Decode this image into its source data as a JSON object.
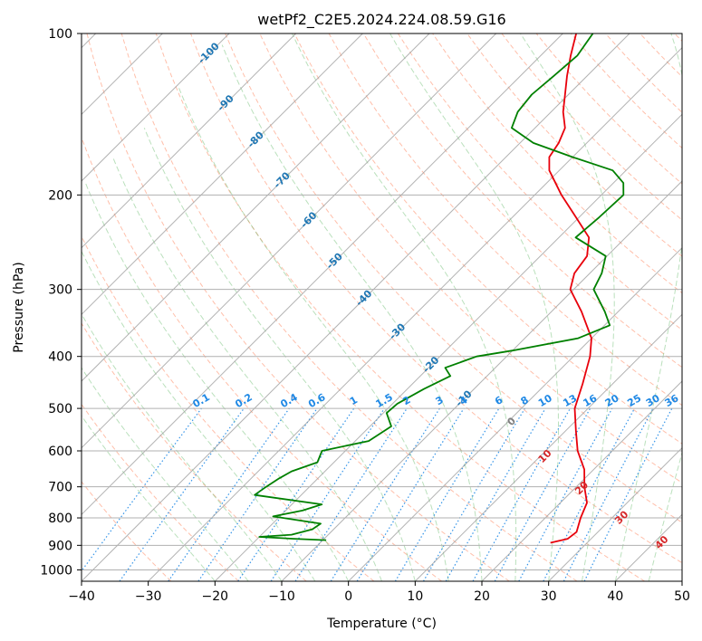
{
  "chart_data": {
    "type": "line",
    "title": "wetPf2_C2E5.2024.224.08.59.G16",
    "xlabel": "Temperature (°C)",
    "ylabel": "Pressure (hPa)",
    "xlim": [
      -40,
      50
    ],
    "ylim": [
      1050,
      100
    ],
    "y_scale": "log",
    "grid": true,
    "x_ticks": [
      -40,
      -30,
      -20,
      -10,
      0,
      10,
      20,
      30,
      40,
      50
    ],
    "x_tick_labels": [
      "−40",
      "−30",
      "−20",
      "−10",
      "0",
      "10",
      "20",
      "30",
      "40",
      "50"
    ],
    "y_ticks": [
      1000,
      900,
      800,
      700,
      600,
      500,
      400,
      300,
      200,
      100
    ],
    "y_tick_labels": [
      "1000",
      "900",
      "800",
      "700",
      "600",
      "500",
      "400",
      "300",
      "200",
      "100"
    ],
    "series": [
      {
        "role": "temperature",
        "color": "#e8000b",
        "points": [
          {
            "p": 890,
            "t": 24.5
          },
          {
            "p": 875,
            "t": 26.5
          },
          {
            "p": 850,
            "t": 26.8
          },
          {
            "p": 800,
            "t": 25.3
          },
          {
            "p": 750,
            "t": 24.0
          },
          {
            "p": 700,
            "t": 21.2
          },
          {
            "p": 650,
            "t": 18.6
          },
          {
            "p": 600,
            "t": 14.8
          },
          {
            "p": 550,
            "t": 11.5
          },
          {
            "p": 500,
            "t": 8.0
          },
          {
            "p": 450,
            "t": 5.5
          },
          {
            "p": 400,
            "t": 2.5
          },
          {
            "p": 370,
            "t": 0.0
          },
          {
            "p": 330,
            "t": -5.5
          },
          {
            "p": 300,
            "t": -10.5
          },
          {
            "p": 280,
            "t": -12.3
          },
          {
            "p": 260,
            "t": -13.0
          },
          {
            "p": 240,
            "t": -15.5
          },
          {
            "p": 220,
            "t": -20.5
          },
          {
            "p": 200,
            "t": -26.0
          },
          {
            "p": 180,
            "t": -31.5
          },
          {
            "p": 170,
            "t": -33.5
          },
          {
            "p": 160,
            "t": -34.2
          },
          {
            "p": 150,
            "t": -35.5
          },
          {
            "p": 140,
            "t": -38.2
          },
          {
            "p": 130,
            "t": -40.5
          },
          {
            "p": 120,
            "t": -43.0
          },
          {
            "p": 110,
            "t": -45.5
          },
          {
            "p": 100,
            "t": -48.0
          }
        ]
      },
      {
        "role": "dewpoint",
        "color": "#008000",
        "points": [
          {
            "p": 880,
            "t": -9.5
          },
          {
            "p": 875,
            "t": -14.5
          },
          {
            "p": 868,
            "t": -20.0
          },
          {
            "p": 860,
            "t": -15.5
          },
          {
            "p": 840,
            "t": -13.2
          },
          {
            "p": 820,
            "t": -12.8
          },
          {
            "p": 795,
            "t": -21.0
          },
          {
            "p": 775,
            "t": -17.5
          },
          {
            "p": 755,
            "t": -15.5
          },
          {
            "p": 725,
            "t": -27.0
          },
          {
            "p": 700,
            "t": -26.5
          },
          {
            "p": 675,
            "t": -25.8
          },
          {
            "p": 655,
            "t": -25.0
          },
          {
            "p": 630,
            "t": -22.5
          },
          {
            "p": 600,
            "t": -23.5
          },
          {
            "p": 575,
            "t": -18.0
          },
          {
            "p": 540,
            "t": -16.8
          },
          {
            "p": 510,
            "t": -19.5
          },
          {
            "p": 490,
            "t": -19.3
          },
          {
            "p": 460,
            "t": -17.5
          },
          {
            "p": 435,
            "t": -15.5
          },
          {
            "p": 420,
            "t": -17.5
          },
          {
            "p": 400,
            "t": -14.5
          },
          {
            "p": 390,
            "t": -10.0
          },
          {
            "p": 370,
            "t": -2.0
          },
          {
            "p": 350,
            "t": 0.8
          },
          {
            "p": 330,
            "t": -2.0
          },
          {
            "p": 300,
            "t": -7.0
          },
          {
            "p": 280,
            "t": -8.2
          },
          {
            "p": 260,
            "t": -10.2
          },
          {
            "p": 240,
            "t": -17.5
          },
          {
            "p": 220,
            "t": -17.0
          },
          {
            "p": 200,
            "t": -16.7
          },
          {
            "p": 190,
            "t": -18.5
          },
          {
            "p": 180,
            "t": -22.0
          },
          {
            "p": 170,
            "t": -30.0
          },
          {
            "p": 160,
            "t": -38.0
          },
          {
            "p": 150,
            "t": -43.5
          },
          {
            "p": 140,
            "t": -45.0
          },
          {
            "p": 130,
            "t": -45.5
          },
          {
            "p": 120,
            "t": -45.0
          },
          {
            "p": 110,
            "t": -44.5
          },
          {
            "p": 100,
            "t": -45.5
          }
        ]
      }
    ],
    "isotherm_labels": [
      {
        "text": "-100",
        "t": -100,
        "p": 109
      },
      {
        "text": "-90",
        "t": -90,
        "p": 135
      },
      {
        "text": "-80",
        "t": -80,
        "p": 158
      },
      {
        "text": "-70",
        "t": -70,
        "p": 188
      },
      {
        "text": "-60",
        "t": -60,
        "p": 223
      },
      {
        "text": "-50",
        "t": -50,
        "p": 266
      },
      {
        "text": "-40",
        "t": -40,
        "p": 312
      },
      {
        "text": "-30",
        "t": -30,
        "p": 360
      },
      {
        "text": "-20",
        "t": -20,
        "p": 415
      },
      {
        "text": "-10",
        "t": -10,
        "p": 480
      }
    ],
    "isotherm_label_colors": [
      "#1f77b4"
    ],
    "dry_adiabat_labels": [
      {
        "text": "0",
        "t": 24.5,
        "p": 530,
        "color": "#7f7f7f"
      },
      {
        "text": "10",
        "t": 29.5,
        "p": 615,
        "color": "#d62728"
      },
      {
        "text": "20",
        "t": 35.0,
        "p": 705,
        "color": "#d62728"
      },
      {
        "text": "30",
        "t": 41.0,
        "p": 800,
        "color": "#d62728"
      },
      {
        "text": "40",
        "t": 47.0,
        "p": 890,
        "color": "#d62728"
      }
    ],
    "mixing_ratio_labels": [
      "0.1",
      "0.2",
      "0.4",
      "0.6",
      "1",
      "1.5",
      "2",
      "3",
      "4",
      "6",
      "8",
      "10",
      "13",
      "16",
      "20",
      "25",
      "30",
      "36"
    ],
    "mixing_ratio_values": [
      0.1,
      0.2,
      0.4,
      0.6,
      1,
      1.5,
      2,
      3,
      4,
      6,
      8,
      10,
      13,
      16,
      20,
      25,
      30,
      36
    ],
    "mixing_ratio_color": "#1e88e5",
    "dry_adiabat_color": "#ff8a65",
    "moist_adiabat_color": "#66bb6a",
    "isotherm_color": "#999999"
  }
}
